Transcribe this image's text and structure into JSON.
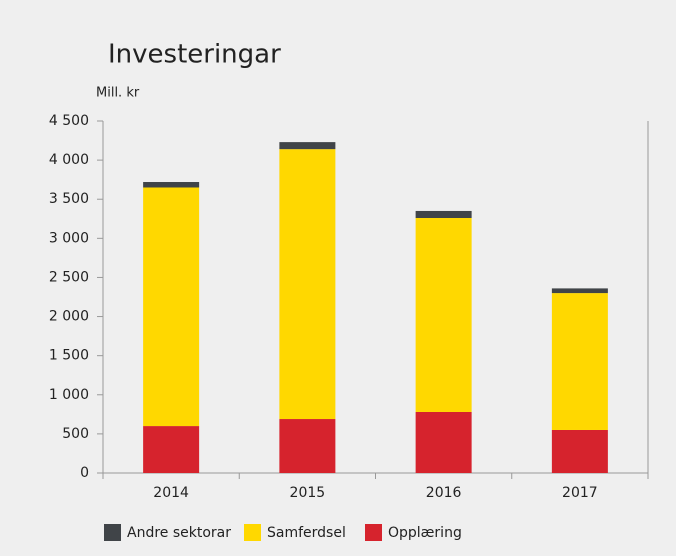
{
  "chart_data": {
    "type": "stacked_bar",
    "title": "Investeringar",
    "ylabel": "Mill. kr",
    "categories": [
      "2014",
      "2015",
      "2016",
      "2017"
    ],
    "series": [
      {
        "name": "Andre sektorar",
        "color": "#404448",
        "values": [
          70,
          90,
          90,
          60
        ]
      },
      {
        "name": "Samferdsel",
        "color": "#ffd800",
        "values": [
          3050,
          3450,
          2480,
          1750
        ]
      },
      {
        "name": "Opplæring",
        "color": "#d6232d",
        "values": [
          600,
          690,
          780,
          550
        ]
      }
    ],
    "ylim": [
      0,
      4500
    ],
    "yticks": [
      0,
      500,
      {
        "value": 1000,
        "label": "1 000"
      },
      {
        "value": 1500,
        "label": "1 500"
      },
      {
        "value": 2000,
        "label": "2 000"
      },
      {
        "value": 2500,
        "label": "2 500"
      },
      {
        "value": 3000,
        "label": "3 000"
      },
      {
        "value": 3500,
        "label": "3 500"
      },
      {
        "value": 4000,
        "label": "4 000"
      },
      {
        "value": 4500,
        "label": "4 500"
      }
    ],
    "grid": false,
    "legend": "bottom"
  }
}
